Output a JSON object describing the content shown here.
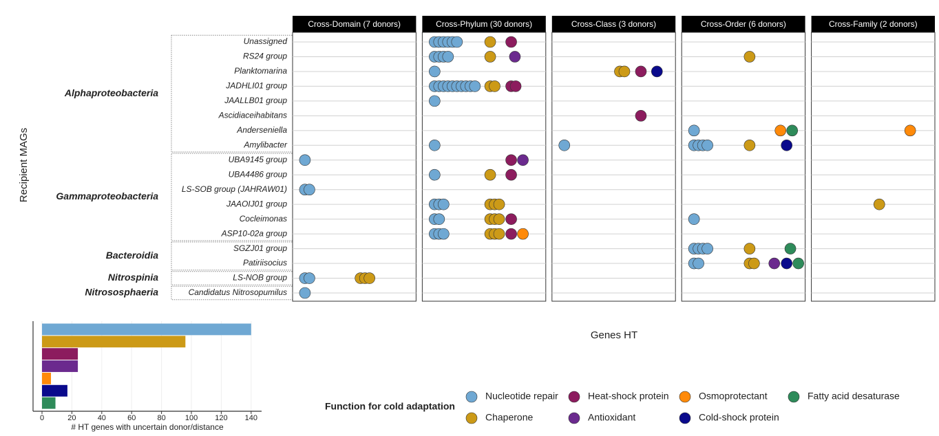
{
  "chart_data": [
    {
      "type": "dotstrip",
      "ylabel": "Recipient MAGs",
      "xlabel": "Genes HT",
      "legend_title": "Function for cold adaptation",
      "groups": [
        {
          "name": "Alphaproteobacteria",
          "members": [
            "Unassigned",
            "RS24 group",
            "Planktomarina",
            "JADHLI01 group",
            "JAALLB01 group",
            "Ascidiaceihabitans",
            "Anderseniella",
            "Amylibacter"
          ]
        },
        {
          "name": "Gammaproteobacteria",
          "members": [
            "UBA9145 group",
            "UBA4486 group",
            "LS-SOB group (JAHRAW01)",
            "JAAOIJ01 group",
            "Cocleimonas",
            "ASP10-02a group"
          ]
        },
        {
          "name": "Bacteroidia",
          "members": [
            "SGZJ01 group",
            "Patiriisocius"
          ]
        },
        {
          "name": "Nitrospinia",
          "members": [
            "LS-NOB group"
          ]
        },
        {
          "name": "Nitrososphaeria",
          "members": [
            "Candidatus Nitrosopumilus"
          ]
        }
      ],
      "series": [
        {
          "name": "Nucleotide repair",
          "color": "#6fa8d3"
        },
        {
          "name": "Chaperone",
          "color": "#cc9a17"
        },
        {
          "name": "Heat-shock protein",
          "color": "#8c1c5e"
        },
        {
          "name": "Antioxidant",
          "color": "#6b2a8e"
        },
        {
          "name": "Osmoprotectant",
          "color": "#ff8a0a"
        },
        {
          "name": "Cold-shock protein",
          "color": "#0a0a8c"
        },
        {
          "name": "Fatty acid desaturase",
          "color": "#2e8b5a"
        }
      ],
      "panels": [
        {
          "title": "Cross-Domain (7 donors)",
          "counts": [
            [
              0,
              0,
              0,
              0,
              0,
              0,
              0
            ],
            [
              0,
              0,
              0,
              0,
              0,
              0,
              0
            ],
            [
              0,
              0,
              0,
              0,
              0,
              0,
              0
            ],
            [
              0,
              0,
              0,
              0,
              0,
              0,
              0
            ],
            [
              0,
              0,
              0,
              0,
              0,
              0,
              0
            ],
            [
              0,
              0,
              0,
              0,
              0,
              0,
              0
            ],
            [
              0,
              0,
              0,
              0,
              0,
              0,
              0
            ],
            [
              0,
              0,
              0,
              0,
              0,
              0,
              0
            ],
            [
              1,
              0,
              0,
              0,
              0,
              0,
              0
            ],
            [
              0,
              0,
              0,
              0,
              0,
              0,
              0
            ],
            [
              2,
              0,
              0,
              0,
              0,
              0,
              0
            ],
            [
              0,
              0,
              0,
              0,
              0,
              0,
              0
            ],
            [
              0,
              0,
              0,
              0,
              0,
              0,
              0
            ],
            [
              0,
              0,
              0,
              0,
              0,
              0,
              0
            ],
            [
              0,
              0,
              0,
              0,
              0,
              0,
              0
            ],
            [
              0,
              0,
              0,
              0,
              0,
              0,
              0
            ],
            [
              2,
              3,
              0,
              0,
              0,
              0,
              0
            ],
            [
              1,
              0,
              0,
              0,
              0,
              0,
              0
            ]
          ]
        },
        {
          "title": "Cross-Phylum (30 donors)",
          "counts": [
            [
              6,
              1,
              1,
              0,
              0,
              0,
              0
            ],
            [
              4,
              1,
              0,
              1,
              0,
              0,
              0
            ],
            [
              1,
              0,
              0,
              0,
              0,
              0,
              0
            ],
            [
              10,
              2,
              2,
              0,
              0,
              0,
              0
            ],
            [
              1,
              0,
              0,
              0,
              0,
              0,
              0
            ],
            [
              0,
              0,
              0,
              0,
              0,
              0,
              0
            ],
            [
              0,
              0,
              0,
              0,
              0,
              0,
              0
            ],
            [
              1,
              0,
              0,
              0,
              0,
              0,
              0
            ],
            [
              0,
              0,
              1,
              1,
              0,
              0,
              0
            ],
            [
              1,
              1,
              1,
              0,
              0,
              0,
              0
            ],
            [
              0,
              0,
              0,
              0,
              0,
              0,
              0
            ],
            [
              3,
              3,
              0,
              0,
              0,
              0,
              0
            ],
            [
              2,
              3,
              1,
              0,
              0,
              0,
              0
            ],
            [
              3,
              3,
              1,
              0,
              1,
              0,
              0
            ],
            [
              0,
              0,
              0,
              0,
              0,
              0,
              0
            ],
            [
              0,
              0,
              0,
              0,
              0,
              0,
              0
            ],
            [
              0,
              0,
              0,
              0,
              0,
              0,
              0
            ],
            [
              0,
              0,
              0,
              0,
              0,
              0,
              0
            ]
          ]
        },
        {
          "title": "Cross-Class (3 donors)",
          "counts": [
            [
              0,
              0,
              0,
              0,
              0,
              0,
              0
            ],
            [
              0,
              0,
              0,
              0,
              0,
              0,
              0
            ],
            [
              0,
              2,
              1,
              0,
              0,
              1,
              0
            ],
            [
              0,
              0,
              0,
              0,
              0,
              0,
              0
            ],
            [
              0,
              0,
              0,
              0,
              0,
              0,
              0
            ],
            [
              0,
              0,
              1,
              0,
              0,
              0,
              0
            ],
            [
              0,
              0,
              0,
              0,
              0,
              0,
              0
            ],
            [
              1,
              0,
              0,
              0,
              0,
              0,
              0
            ],
            [
              0,
              0,
              0,
              0,
              0,
              0,
              0
            ],
            [
              0,
              0,
              0,
              0,
              0,
              0,
              0
            ],
            [
              0,
              0,
              0,
              0,
              0,
              0,
              0
            ],
            [
              0,
              0,
              0,
              0,
              0,
              0,
              0
            ],
            [
              0,
              0,
              0,
              0,
              0,
              0,
              0
            ],
            [
              0,
              0,
              0,
              0,
              0,
              0,
              0
            ],
            [
              0,
              0,
              0,
              0,
              0,
              0,
              0
            ],
            [
              0,
              0,
              0,
              0,
              0,
              0,
              0
            ],
            [
              0,
              0,
              0,
              0,
              0,
              0,
              0
            ],
            [
              0,
              0,
              0,
              0,
              0,
              0,
              0
            ]
          ]
        },
        {
          "title": "Cross-Order (6 donors)",
          "counts": [
            [
              0,
              0,
              0,
              0,
              0,
              0,
              0
            ],
            [
              0,
              1,
              0,
              0,
              0,
              0,
              0
            ],
            [
              0,
              0,
              0,
              0,
              0,
              0,
              0
            ],
            [
              0,
              0,
              0,
              0,
              0,
              0,
              0
            ],
            [
              0,
              0,
              0,
              0,
              0,
              0,
              0
            ],
            [
              0,
              0,
              0,
              0,
              0,
              0,
              0
            ],
            [
              1,
              0,
              0,
              0,
              1,
              0,
              1
            ],
            [
              4,
              1,
              0,
              0,
              0,
              1,
              0
            ],
            [
              0,
              0,
              0,
              0,
              0,
              0,
              0
            ],
            [
              0,
              0,
              0,
              0,
              0,
              0,
              0
            ],
            [
              0,
              0,
              0,
              0,
              0,
              0,
              0
            ],
            [
              0,
              0,
              0,
              0,
              0,
              0,
              0
            ],
            [
              1,
              0,
              0,
              0,
              0,
              0,
              0
            ],
            [
              0,
              0,
              0,
              0,
              0,
              0,
              0
            ],
            [
              4,
              1,
              0,
              0,
              0,
              0,
              1
            ],
            [
              2,
              2,
              0,
              1,
              0,
              1,
              1
            ],
            [
              0,
              0,
              0,
              0,
              0,
              0,
              0
            ],
            [
              0,
              0,
              0,
              0,
              0,
              0,
              0
            ]
          ]
        },
        {
          "title": "Cross-Family (2 donors)",
          "counts": [
            [
              0,
              0,
              0,
              0,
              0,
              0,
              0
            ],
            [
              0,
              0,
              0,
              0,
              0,
              0,
              0
            ],
            [
              0,
              0,
              0,
              0,
              0,
              0,
              0
            ],
            [
              0,
              0,
              0,
              0,
              0,
              0,
              0
            ],
            [
              0,
              0,
              0,
              0,
              0,
              0,
              0
            ],
            [
              0,
              0,
              0,
              0,
              0,
              0,
              0
            ],
            [
              0,
              0,
              0,
              0,
              1,
              0,
              0
            ],
            [
              0,
              0,
              0,
              0,
              0,
              0,
              0
            ],
            [
              0,
              0,
              0,
              0,
              0,
              0,
              0
            ],
            [
              0,
              0,
              0,
              0,
              0,
              0,
              0
            ],
            [
              0,
              0,
              0,
              0,
              0,
              0,
              0
            ],
            [
              0,
              1,
              0,
              0,
              0,
              0,
              0
            ],
            [
              0,
              0,
              0,
              0,
              0,
              0,
              0
            ],
            [
              0,
              0,
              0,
              0,
              0,
              0,
              0
            ],
            [
              0,
              0,
              0,
              0,
              0,
              0,
              0
            ],
            [
              0,
              0,
              0,
              0,
              0,
              0,
              0
            ],
            [
              0,
              0,
              0,
              0,
              0,
              0,
              0
            ],
            [
              0,
              0,
              0,
              0,
              0,
              0,
              0
            ]
          ]
        }
      ]
    },
    {
      "type": "bar",
      "orientation": "horizontal",
      "xlabel": "# HT genes with uncertain donor/distance",
      "values": [
        140,
        96,
        24,
        24,
        6,
        17,
        9
      ],
      "xlim": [
        -6,
        147
      ],
      "xticks": [
        0,
        20,
        40,
        60,
        80,
        100,
        120,
        140
      ],
      "grid": true
    }
  ]
}
